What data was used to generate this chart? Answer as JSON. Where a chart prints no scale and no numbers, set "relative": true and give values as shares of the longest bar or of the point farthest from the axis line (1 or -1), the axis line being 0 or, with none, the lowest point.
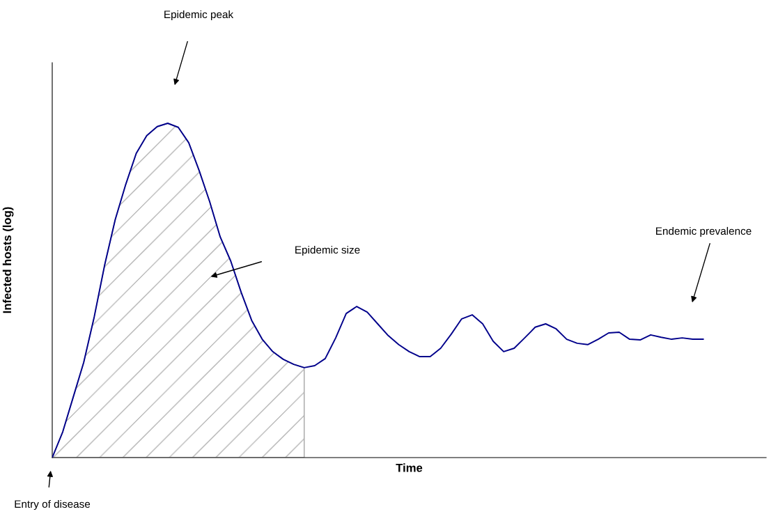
{
  "chart_data": {
    "type": "line",
    "relative": true,
    "xlabel": "Time",
    "ylabel": "Infected hosts (log)",
    "tick_labels": false,
    "categories": [
      null,
      null,
      null,
      null,
      null,
      null,
      null,
      null,
      null,
      null,
      null,
      null,
      null,
      null,
      null,
      null,
      null,
      null,
      null,
      null,
      null,
      null,
      null,
      null,
      null,
      null,
      null,
      null,
      null,
      null,
      null,
      null,
      null,
      null,
      null,
      null,
      null,
      null,
      null,
      null,
      null,
      null,
      null,
      null,
      null,
      null,
      null,
      null,
      null,
      null,
      null,
      null,
      null,
      null,
      null,
      null,
      null,
      null,
      null,
      null,
      null,
      null,
      null,
      null,
      null,
      null,
      null,
      null,
      null
    ],
    "series": [
      {
        "type": "area",
        "color": "#a6a6a6",
        "values": [
          0,
          0.077,
          0.181,
          0.285,
          0.421,
          0.577,
          0.712,
          0.817,
          0.91,
          0.963,
          0.99,
          1.0,
          0.988,
          0.942,
          0.858,
          0.765,
          0.66,
          0.588,
          0.494,
          0.41,
          0.354,
          0.317,
          0.294,
          0.279,
          0.269,
          null,
          null,
          null,
          null,
          null,
          null,
          null,
          null,
          null,
          null,
          null,
          null,
          null,
          null,
          null,
          null,
          null,
          null,
          null,
          null,
          null,
          null,
          null,
          null,
          null,
          null,
          null,
          null,
          null,
          null,
          null,
          null,
          null,
          null,
          null,
          null,
          null,
          null,
          null,
          null,
          null,
          null,
          null,
          null
        ]
      },
      {
        "color": "#00008b",
        "values": [
          0,
          0.077,
          0.181,
          0.285,
          0.421,
          0.577,
          0.712,
          0.817,
          0.91,
          0.963,
          0.99,
          1.0,
          0.988,
          0.942,
          0.858,
          0.765,
          0.66,
          0.588,
          0.494,
          0.41,
          0.354,
          0.317,
          0.294,
          0.279,
          0.269,
          0.275,
          0.296,
          0.358,
          0.431,
          0.452,
          0.435,
          0.4,
          0.365,
          0.338,
          0.317,
          0.302,
          0.302,
          0.327,
          0.369,
          0.415,
          0.427,
          0.4,
          0.348,
          0.317,
          0.327,
          0.358,
          0.39,
          0.4,
          0.385,
          0.354,
          0.342,
          0.338,
          0.354,
          0.373,
          0.375,
          0.354,
          0.352,
          0.367,
          0.36,
          0.354,
          0.358,
          0.354,
          0.354,
          null,
          null,
          null,
          null,
          null,
          null
        ]
      }
    ],
    "annotations": [
      "Epidemic peak",
      "Epidemic size",
      "Endemic prevalence",
      "Entry of disease"
    ]
  }
}
